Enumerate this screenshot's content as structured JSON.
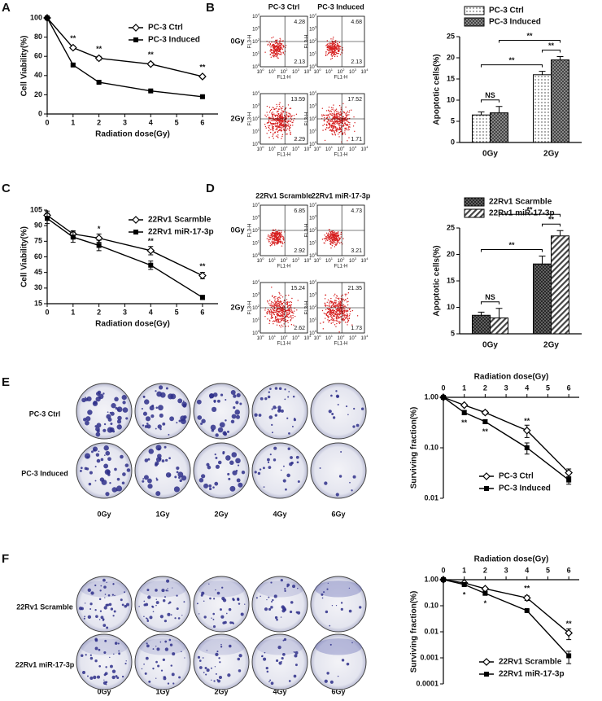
{
  "chart_data": [
    {
      "type": "line",
      "panel": "A",
      "x_label": "Radiation dose(Gy)",
      "y_label": "Cell Viability(%)",
      "x": [
        0,
        1,
        2,
        4,
        6
      ],
      "xlim": [
        0,
        6.6
      ],
      "xticks": [
        0,
        1,
        2,
        3,
        4,
        5,
        6
      ],
      "ylim": [
        0,
        100
      ],
      "yticks": [
        0,
        20,
        40,
        60,
        80,
        100
      ],
      "series": [
        {
          "name": "PC-3 Ctrl",
          "color": "#000000",
          "marker": "open-diamond",
          "values": [
            100,
            69,
            58,
            52,
            39
          ],
          "errors": [
            1,
            1.5,
            2,
            1.5,
            1.5
          ]
        },
        {
          "name": "PC-3 Induced",
          "color": "#000000",
          "marker": "square",
          "values": [
            100,
            51,
            33,
            24,
            18
          ],
          "errors": [
            1,
            1,
            1,
            1,
            1
          ]
        }
      ],
      "significance": [
        null,
        "**",
        "**",
        "**",
        "**"
      ],
      "significance_side": [
        "above",
        "above",
        "above",
        "above",
        "above"
      ],
      "legend": "top-right"
    },
    {
      "type": "bar",
      "y_label": "Apoptotic cells(%)",
      "categories": [
        "0Gy",
        "2Gy"
      ],
      "ylim": [
        0,
        25
      ],
      "yticks": [
        0,
        5,
        10,
        15,
        20,
        25
      ],
      "series": [
        {
          "name": "PC-3 Ctrl",
          "pattern": "dots",
          "values": [
            6.5,
            16
          ],
          "errors": [
            0.7,
            0.8
          ]
        },
        {
          "name": "PC-3 Induced",
          "pattern": "grid",
          "values": [
            7,
            19.5
          ],
          "errors": [
            1.5,
            0.8
          ]
        }
      ],
      "comparisons": [
        {
          "between": [
            [
              0,
              0
            ],
            [
              0,
              1
            ]
          ],
          "label": "NS"
        },
        {
          "between": [
            [
              1,
              0
            ],
            [
              1,
              1
            ]
          ],
          "label": "**"
        },
        {
          "between": [
            [
              0,
              0
            ],
            [
              1,
              0
            ]
          ],
          "label": "**"
        },
        {
          "between": [
            [
              0,
              1
            ],
            [
              1,
              1
            ]
          ],
          "label": "**"
        }
      ],
      "legend": "top"
    },
    {
      "type": "line",
      "panel": "C",
      "x_label": "Radiation dose(Gy)",
      "y_label": "Cell Viability(%)",
      "x": [
        0,
        1,
        2,
        4,
        6
      ],
      "xlim": [
        0,
        6.6
      ],
      "xticks": [
        0,
        1,
        2,
        3,
        4,
        5,
        6
      ],
      "ylim": [
        15,
        105
      ],
      "yticks": [
        15,
        30,
        45,
        60,
        75,
        90,
        105
      ],
      "series": [
        {
          "name": "22Rv1 Scarmble",
          "color": "#000000",
          "marker": "open-diamond",
          "values": [
            100,
            82,
            78,
            66,
            42
          ],
          "errors": [
            4,
            3,
            4,
            4,
            3
          ]
        },
        {
          "name": "22Rv1 miR-17-3p",
          "color": "#000000",
          "marker": "square",
          "values": [
            97,
            79,
            71,
            52,
            21
          ],
          "errors": [
            5,
            5,
            5,
            4,
            2
          ]
        }
      ],
      "significance": [
        null,
        null,
        "*",
        "**",
        "**"
      ],
      "significance_side": [
        "above",
        "above",
        "above",
        "above",
        "above"
      ],
      "legend": "top-right"
    },
    {
      "type": "bar",
      "y_label": "Apoptotic cells(%)",
      "categories": [
        "0Gy",
        "2Gy"
      ],
      "ylim": [
        5,
        25
      ],
      "yticks": [
        5,
        10,
        15,
        20,
        25
      ],
      "series": [
        {
          "name": "22Rv1 Scarmble",
          "pattern": "dense",
          "values": [
            8.5,
            18.2
          ],
          "errors": [
            0.6,
            1.5
          ]
        },
        {
          "name": "22Rv1 miR-17-3p",
          "pattern": "stripes",
          "values": [
            8,
            23.5
          ],
          "errors": [
            1.8,
            1
          ]
        }
      ],
      "comparisons": [
        {
          "between": [
            [
              0,
              0
            ],
            [
              0,
              1
            ]
          ],
          "label": "NS"
        },
        {
          "between": [
            [
              1,
              0
            ],
            [
              1,
              1
            ]
          ],
          "label": "**"
        },
        {
          "between": [
            [
              0,
              0
            ],
            [
              1,
              0
            ]
          ],
          "label": "**"
        },
        {
          "between": [
            [
              0,
              1
            ],
            [
              1,
              1
            ]
          ],
          "label": "**"
        }
      ],
      "legend": "top"
    },
    {
      "type": "line",
      "x_label": "Radiation dose(Gy)",
      "y_label": "Surviving fraction(%)",
      "x_axis": "top",
      "log": true,
      "x": [
        0,
        1,
        2,
        4,
        6
      ],
      "xlim": [
        0,
        6.5
      ],
      "xticks": [
        0,
        1,
        2,
        3,
        4,
        5,
        6
      ],
      "ylim": [
        0.01,
        1
      ],
      "yticks": [
        0.01,
        {
          "value": 0.1,
          "label": "0.10"
        },
        {
          "value": 1,
          "label": "1.00"
        }
      ],
      "series": [
        {
          "name": "PC-3 Ctrl",
          "color": "#000000",
          "marker": "open-diamond",
          "values": [
            1,
            0.7,
            0.5,
            0.22,
            0.032
          ],
          "errors": [
            0.03,
            0.03,
            0.04,
            0.06,
            0.006
          ]
        },
        {
          "name": "PC-3 Induced",
          "color": "#000000",
          "marker": "square",
          "values": [
            1,
            0.5,
            0.33,
            0.1,
            0.023
          ],
          "errors": [
            0.03,
            0.05,
            0.03,
            0.025,
            0.004
          ]
        }
      ],
      "significance": [
        null,
        "**",
        "**",
        "**",
        null
      ],
      "significance_side": [
        "above",
        "below",
        "below",
        "above",
        "above"
      ],
      "legend": "bottom-left"
    },
    {
      "type": "line",
      "x_label": "Radiation dose(Gy)",
      "y_label": "Surviving fraction(%)",
      "x_axis": "top",
      "log": true,
      "x": [
        0,
        1,
        2,
        4,
        6
      ],
      "xlim": [
        0,
        6.5
      ],
      "xticks": [
        0,
        1,
        2,
        3,
        4,
        5,
        6
      ],
      "ylim": [
        0.0001,
        1
      ],
      "yticks": [
        0.0001,
        0.001,
        0.01,
        {
          "value": 0.1,
          "label": "0.10"
        },
        {
          "value": 1,
          "label": "1.00"
        }
      ],
      "series": [
        {
          "name": "22Rv1 Scramble",
          "color": "#000000",
          "marker": "open-diamond",
          "values": [
            1,
            0.75,
            0.45,
            0.2,
            0.009
          ],
          "errors": [
            0.05,
            0.05,
            0.05,
            0.04,
            0.004
          ]
        },
        {
          "name": "22Rv1 miR-17-3p",
          "color": "#000000",
          "marker": "square",
          "values": [
            1,
            0.65,
            0.3,
            0.065,
            0.0012
          ],
          "errors": [
            0.05,
            0.05,
            0.04,
            0.006,
            0.0006
          ]
        }
      ],
      "significance": [
        null,
        "*",
        "*",
        "**",
        "**"
      ],
      "significance_side": [
        "above",
        "below",
        "below",
        "above",
        "above"
      ],
      "legend": "bottom-left"
    }
  ],
  "flow_panels": [
    {
      "panel": "B",
      "columns": [
        "PC-3 Ctrl",
        "PC-3 Induced"
      ],
      "rows": [
        "0Gy",
        "2Gy"
      ],
      "x_label": "FL1-H",
      "y_label": "FL3-H",
      "tick_base": "10",
      "tick_exponents": [
        "0",
        "1",
        "2",
        "3",
        "4"
      ],
      "quadrants": [
        [
          [
            4.28,
            2.13
          ],
          [
            4.68,
            2.13
          ]
        ],
        [
          [
            13.59,
            2.29
          ],
          [
            17.52,
            1.71
          ]
        ]
      ]
    },
    {
      "panel": "D",
      "columns": [
        "22Rv1 Scramble",
        "22Rv1 miR-17-3p"
      ],
      "rows": [
        "0Gy",
        "2Gy"
      ],
      "x_label": "FL1-H",
      "y_label": "FL3-H",
      "tick_base": "10",
      "tick_exponents": [
        "0",
        "1",
        "2",
        "3",
        "4"
      ],
      "quadrants": [
        [
          [
            6.85,
            2.92
          ],
          [
            4.73,
            3.21
          ]
        ],
        [
          [
            15.24,
            2.62
          ],
          [
            21.35,
            1.73
          ]
        ]
      ]
    }
  ],
  "colony_panels": [
    {
      "panel": "E",
      "rows": [
        "PC-3 Ctrl",
        "PC-3 Induced"
      ],
      "columns": [
        "0Gy",
        "1Gy",
        "2Gy",
        "4Gy",
        "6Gy"
      ]
    },
    {
      "panel": "F",
      "rows": [
        "22Rv1 Scramble",
        "22Rv1 miR-17-3p"
      ],
      "columns": [
        "0Gy",
        "1Gy",
        "2Gy",
        "4Gy",
        "6Gy"
      ]
    }
  ]
}
